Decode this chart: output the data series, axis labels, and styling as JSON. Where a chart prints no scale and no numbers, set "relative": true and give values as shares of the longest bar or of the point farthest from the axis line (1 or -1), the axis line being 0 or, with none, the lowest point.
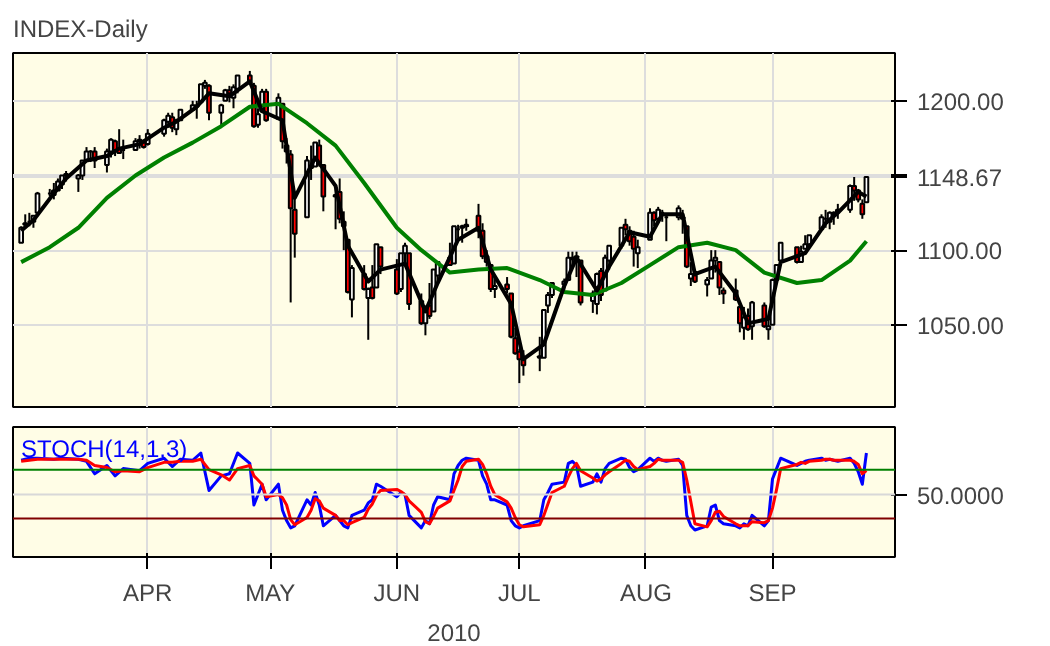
{
  "chart_data": [
    {
      "type": "candlestick",
      "title": "INDEX-Daily",
      "grid": true,
      "tick_labels": "y",
      "x": [
        "2010-03-01",
        "2010-03-02",
        "2010-03-03",
        "2010-03-04",
        "2010-03-05",
        "2010-03-08",
        "2010-03-09",
        "2010-03-10",
        "2010-03-11",
        "2010-03-12",
        "2010-03-15",
        "2010-03-16",
        "2010-03-17",
        "2010-03-18",
        "2010-03-19",
        "2010-03-22",
        "2010-03-23",
        "2010-03-24",
        "2010-03-25",
        "2010-03-26",
        "2010-03-29",
        "2010-03-30",
        "2010-03-31",
        "2010-04-01",
        "2010-04-05",
        "2010-04-06",
        "2010-04-07",
        "2010-04-08",
        "2010-04-09",
        "2010-04-12",
        "2010-04-13",
        "2010-04-14",
        "2010-04-15",
        "2010-04-16",
        "2010-04-19",
        "2010-04-20",
        "2010-04-21",
        "2010-04-22",
        "2010-04-23",
        "2010-04-26",
        "2010-04-27",
        "2010-04-28",
        "2010-04-29",
        "2010-04-30",
        "2010-05-03",
        "2010-05-04",
        "2010-05-05",
        "2010-05-06",
        "2010-05-07",
        "2010-05-10",
        "2010-05-11",
        "2010-05-12",
        "2010-05-13",
        "2010-05-14",
        "2010-05-17",
        "2010-05-18",
        "2010-05-19",
        "2010-05-20",
        "2010-05-21",
        "2010-05-24",
        "2010-05-25",
        "2010-05-26",
        "2010-05-27",
        "2010-05-28",
        "2010-06-01",
        "2010-06-02",
        "2010-06-03",
        "2010-06-04",
        "2010-06-07",
        "2010-06-08",
        "2010-06-09",
        "2010-06-10",
        "2010-06-11",
        "2010-06-14",
        "2010-06-15",
        "2010-06-16",
        "2010-06-17",
        "2010-06-18",
        "2010-06-21",
        "2010-06-22",
        "2010-06-23",
        "2010-06-24",
        "2010-06-25",
        "2010-06-28",
        "2010-06-29",
        "2010-06-30",
        "2010-07-01",
        "2010-07-02",
        "2010-07-06",
        "2010-07-07",
        "2010-07-08",
        "2010-07-09",
        "2010-07-12",
        "2010-07-13",
        "2010-07-14",
        "2010-07-15",
        "2010-07-16",
        "2010-07-19",
        "2010-07-20",
        "2010-07-21",
        "2010-07-22",
        "2010-07-23",
        "2010-07-26",
        "2010-07-27",
        "2010-07-28",
        "2010-07-29",
        "2010-07-30",
        "2010-08-02",
        "2010-08-03",
        "2010-08-04",
        "2010-08-05",
        "2010-08-06",
        "2010-08-09",
        "2010-08-10",
        "2010-08-11",
        "2010-08-12",
        "2010-08-13",
        "2010-08-16",
        "2010-08-17",
        "2010-08-18",
        "2010-08-19",
        "2010-08-20",
        "2010-08-23",
        "2010-08-24",
        "2010-08-25",
        "2010-08-26",
        "2010-08-27",
        "2010-08-30",
        "2010-08-31",
        "2010-09-01",
        "2010-09-02",
        "2010-09-03",
        "2010-09-07",
        "2010-09-08",
        "2010-09-09",
        "2010-09-10",
        "2010-09-13",
        "2010-09-14",
        "2010-09-15",
        "2010-09-16",
        "2010-09-17",
        "2010-09-20",
        "2010-09-21",
        "2010-09-22",
        "2010-09-23",
        "2010-09-24"
      ],
      "ohlc": [
        [
          1105,
          1116,
          1105,
          1115
        ],
        [
          1117,
          1124,
          1116,
          1118
        ],
        [
          1119,
          1125,
          1116,
          1119
        ],
        [
          1119,
          1123,
          1115,
          1123
        ],
        [
          1125,
          1139,
          1125,
          1138
        ],
        [
          1138,
          1141,
          1136,
          1138
        ],
        [
          1137,
          1145,
          1134,
          1140
        ],
        [
          1140,
          1148,
          1140,
          1146
        ],
        [
          1144,
          1150,
          1141,
          1150
        ],
        [
          1151,
          1153,
          1146,
          1150
        ],
        [
          1148,
          1151,
          1139,
          1150
        ],
        [
          1150,
          1160,
          1147,
          1160
        ],
        [
          1160,
          1169,
          1160,
          1166
        ],
        [
          1166,
          1167,
          1159,
          1166
        ],
        [
          1166,
          1169,
          1155,
          1160
        ],
        [
          1157,
          1168,
          1152,
          1166
        ],
        [
          1166,
          1175,
          1162,
          1174
        ],
        [
          1173,
          1174,
          1163,
          1167
        ],
        [
          1168,
          1181,
          1165,
          1165
        ],
        [
          1167,
          1174,
          1161,
          1167
        ],
        [
          1167,
          1175,
          1167,
          1173
        ],
        [
          1173,
          1177,
          1168,
          1174
        ],
        [
          1172,
          1174,
          1168,
          1169
        ],
        [
          1171,
          1181,
          1170,
          1178
        ],
        [
          1178,
          1188,
          1176,
          1187
        ],
        [
          1186,
          1192,
          1182,
          1190
        ],
        [
          1189,
          1192,
          1179,
          1182
        ],
        [
          1181,
          1188,
          1177,
          1187
        ],
        [
          1187,
          1194,
          1187,
          1194
        ],
        [
          1194,
          1200,
          1194,
          1197
        ],
        [
          1196,
          1200,
          1188,
          1197
        ],
        [
          1199,
          1211,
          1199,
          1211
        ],
        [
          1210,
          1214,
          1208,
          1212
        ],
        [
          1210,
          1211,
          1187,
          1192
        ],
        [
          1192,
          1198,
          1183,
          1197
        ],
        [
          1200,
          1208,
          1200,
          1207
        ],
        [
          1207,
          1210,
          1199,
          1205
        ],
        [
          1202,
          1211,
          1195,
          1209
        ],
        [
          1208,
          1217,
          1205,
          1217
        ],
        [
          1217,
          1220,
          1211,
          1212
        ],
        [
          1210,
          1212,
          1182,
          1183
        ],
        [
          1184,
          1195,
          1182,
          1191
        ],
        [
          1193,
          1208,
          1193,
          1206
        ],
        [
          1206,
          1208,
          1186,
          1187
        ],
        [
          1188,
          1205,
          1188,
          1202
        ],
        [
          1198,
          1198,
          1168,
          1173
        ],
        [
          1170,
          1175,
          1158,
          1166
        ],
        [
          1164,
          1167,
          1065,
          1128
        ],
        [
          1127,
          1135,
          1095,
          1111
        ],
        [
          1122,
          1163,
          1122,
          1160
        ],
        [
          1155,
          1170,
          1147,
          1156
        ],
        [
          1156,
          1172,
          1156,
          1172
        ],
        [
          1170,
          1174,
          1156,
          1158
        ],
        [
          1157,
          1157,
          1126,
          1136
        ],
        [
          1137,
          1141,
          1114,
          1136
        ],
        [
          1139,
          1148,
          1118,
          1121
        ],
        [
          1119,
          1126,
          1100,
          1116
        ],
        [
          1107,
          1107,
          1071,
          1072
        ],
        [
          1067,
          1090,
          1055,
          1088
        ],
        [
          1084,
          1090,
          1073,
          1074
        ],
        [
          1068,
          1075,
          1040,
          1074
        ],
        [
          1075,
          1090,
          1067,
          1068
        ],
        [
          1075,
          1104,
          1075,
          1104
        ],
        [
          1102,
          1102,
          1084,
          1089
        ],
        [
          1087,
          1094,
          1070,
          1071
        ],
        [
          1074,
          1098,
          1072,
          1098
        ],
        [
          1098,
          1105,
          1091,
          1103
        ],
        [
          1098,
          1098,
          1060,
          1064
        ],
        [
          1066,
          1071,
          1050,
          1051
        ],
        [
          1051,
          1063,
          1043,
          1062
        ],
        [
          1063,
          1078,
          1054,
          1056
        ],
        [
          1059,
          1087,
          1059,
          1087
        ],
        [
          1083,
          1092,
          1079,
          1092
        ],
        [
          1095,
          1105,
          1090,
          1090
        ],
        [
          1091,
          1116,
          1091,
          1116
        ],
        [
          1114,
          1117,
          1106,
          1114
        ],
        [
          1115,
          1117,
          1105,
          1116
        ],
        [
          1116,
          1121,
          1113,
          1117
        ],
        [
          1123,
          1131,
          1108,
          1113
        ],
        [
          1113,
          1118,
          1094,
          1096
        ],
        [
          1096,
          1100,
          1089,
          1092
        ],
        [
          1090,
          1090,
          1072,
          1074
        ],
        [
          1074,
          1083,
          1068,
          1076
        ],
        [
          1077,
          1082,
          1071,
          1074
        ],
        [
          1071,
          1071,
          1041,
          1042
        ],
        [
          1041,
          1048,
          1030,
          1031
        ],
        [
          1032,
          1034,
          1011,
          1027
        ],
        [
          1028,
          1033,
          1016,
          1023
        ],
        [
          1029,
          1042,
          1019,
          1028
        ],
        [
          1028,
          1060,
          1028,
          1060
        ],
        [
          1063,
          1072,
          1058,
          1070
        ],
        [
          1070,
          1078,
          1068,
          1078
        ],
        [
          1077,
          1081,
          1072,
          1079
        ],
        [
          1080,
          1099,
          1080,
          1095
        ],
        [
          1094,
          1099,
          1088,
          1095
        ],
        [
          1095,
          1099,
          1082,
          1096
        ],
        [
          1093,
          1093,
          1063,
          1065
        ],
        [
          1066,
          1073,
          1058,
          1071
        ],
        [
          1064,
          1085,
          1057,
          1084
        ],
        [
          1086,
          1088,
          1066,
          1070
        ],
        [
          1073,
          1097,
          1073,
          1095
        ],
        [
          1093,
          1103,
          1087,
          1103
        ],
        [
          1103,
          1115,
          1101,
          1115
        ],
        [
          1117,
          1121,
          1110,
          1114
        ],
        [
          1113,
          1116,
          1103,
          1106
        ],
        [
          1109,
          1113,
          1089,
          1101
        ],
        [
          1098,
          1107,
          1088,
          1102
        ],
        [
          1107,
          1128,
          1107,
          1125
        ],
        [
          1125,
          1126,
          1116,
          1120
        ],
        [
          1121,
          1129,
          1120,
          1127
        ],
        [
          1125,
          1127,
          1119,
          1125
        ],
        [
          1122,
          1123,
          1106,
          1122
        ],
        [
          1122,
          1130,
          1120,
          1128
        ],
        [
          1122,
          1127,
          1111,
          1121
        ],
        [
          1116,
          1116,
          1088,
          1089
        ],
        [
          1081,
          1092,
          1076,
          1084
        ],
        [
          1083,
          1087,
          1078,
          1079
        ],
        [
          1077,
          1082,
          1069,
          1080
        ],
        [
          1081,
          1100,
          1081,
          1093
        ],
        [
          1093,
          1100,
          1085,
          1095
        ],
        [
          1092,
          1092,
          1070,
          1075
        ],
        [
          1073,
          1075,
          1064,
          1071
        ],
        [
          1073,
          1081,
          1066,
          1067
        ],
        [
          1062,
          1062,
          1045,
          1051
        ],
        [
          1048,
          1062,
          1040,
          1055
        ],
        [
          1056,
          1061,
          1046,
          1047
        ],
        [
          1049,
          1066,
          1040,
          1065
        ],
        [
          1063,
          1065,
          1048,
          1049
        ],
        [
          1047,
          1056,
          1040,
          1049
        ],
        [
          1050,
          1081,
          1050,
          1080
        ],
        [
          1080,
          1090,
          1079,
          1090
        ],
        [
          1093,
          1105,
          1093,
          1105
        ],
        [
          1102,
          1102,
          1091,
          1092
        ],
        [
          1092,
          1103,
          1092,
          1099
        ],
        [
          1101,
          1110,
          1101,
          1104
        ],
        [
          1104,
          1110,
          1102,
          1110
        ],
        [
          1114,
          1124,
          1114,
          1122
        ],
        [
          1121,
          1127,
          1115,
          1121
        ],
        [
          1119,
          1126,
          1114,
          1125
        ],
        [
          1124,
          1126,
          1117,
          1125
        ],
        [
          1127,
          1131,
          1121,
          1126
        ],
        [
          1127,
          1144,
          1125,
          1143
        ],
        [
          1143,
          1149,
          1133,
          1140
        ],
        [
          1140,
          1141,
          1132,
          1134
        ],
        [
          1131,
          1134,
          1121,
          1124
        ],
        [
          1132,
          1149,
          1132,
          1149
        ]
      ],
      "series": [
        {
          "type": "line",
          "color": "#008000",
          "x": [
            "2010-03-01",
            "2010-03-08",
            "2010-03-15",
            "2010-03-22",
            "2010-03-29",
            "2010-04-05",
            "2010-04-12",
            "2010-04-19",
            "2010-04-26",
            "2010-05-03",
            "2010-05-10",
            "2010-05-17",
            "2010-05-24",
            "2010-06-01",
            "2010-06-07",
            "2010-06-14",
            "2010-06-21",
            "2010-06-28",
            "2010-07-06",
            "2010-07-12",
            "2010-07-19",
            "2010-07-26",
            "2010-08-02",
            "2010-08-09",
            "2010-08-16",
            "2010-08-23",
            "2010-08-30",
            "2010-09-07",
            "2010-09-13",
            "2010-09-20",
            "2010-09-24"
          ],
          "values": [
            1092,
            1102,
            1115,
            1135,
            1150,
            1162,
            1172,
            1183,
            1196,
            1198,
            1185,
            1170,
            1145,
            1115,
            1100,
            1085,
            1087,
            1088,
            1080,
            1072,
            1070,
            1078,
            1090,
            1102,
            1105,
            1100,
            1085,
            1078,
            1080,
            1093,
            1106
          ]
        },
        {
          "type": "line",
          "color": "#000000",
          "x": [
            "2010-03-01",
            "2010-03-04",
            "2010-03-09",
            "2010-03-12",
            "2010-03-17",
            "2010-03-22",
            "2010-03-25",
            "2010-03-30",
            "2010-04-05",
            "2010-04-08",
            "2010-04-13",
            "2010-04-16",
            "2010-04-21",
            "2010-04-26",
            "2010-04-29",
            "2010-05-04",
            "2010-05-07",
            "2010-05-12",
            "2010-05-17",
            "2010-05-20",
            "2010-05-25",
            "2010-05-28",
            "2010-06-03",
            "2010-06-08",
            "2010-06-11",
            "2010-06-16",
            "2010-06-21",
            "2010-06-24",
            "2010-06-29",
            "2010-07-02",
            "2010-07-07",
            "2010-07-12",
            "2010-07-15",
            "2010-07-20",
            "2010-07-23",
            "2010-07-28",
            "2010-08-02",
            "2010-08-05",
            "2010-08-10",
            "2010-08-13",
            "2010-08-18",
            "2010-08-23",
            "2010-08-26",
            "2010-08-31",
            "2010-09-03",
            "2010-09-09",
            "2010-09-14",
            "2010-09-17",
            "2010-09-22",
            "2010-09-24"
          ],
          "values": [
            1113,
            1120,
            1138,
            1148,
            1160,
            1163,
            1168,
            1171,
            1182,
            1186,
            1196,
            1205,
            1203,
            1213,
            1193,
            1187,
            1135,
            1162,
            1143,
            1103,
            1079,
            1087,
            1091,
            1059,
            1078,
            1107,
            1115,
            1087,
            1064,
            1027,
            1037,
            1076,
            1095,
            1073,
            1089,
            1112,
            1109,
            1124,
            1124,
            1084,
            1089,
            1071,
            1051,
            1054,
            1092,
            1098,
            1118,
            1125,
            1139,
            1136
          ]
        }
      ],
      "xlim": [
        "2010-02-27",
        "2010-10-01"
      ],
      "xticks": [
        {
          "value": "2010-04-01",
          "label": null
        },
        {
          "value": "2010-05-01",
          "label": null
        },
        {
          "value": "2010-06-01",
          "label": null
        },
        {
          "value": "2010-07-01",
          "label": null
        },
        {
          "value": "2010-08-01",
          "label": null
        },
        {
          "value": "2010-09-01",
          "label": null
        }
      ],
      "ylim": [
        995,
        1232
      ],
      "yticks": [
        {
          "value": 1050,
          "label": "1050.00"
        },
        {
          "value": 1100,
          "label": "1100.00"
        },
        {
          "value": 1148.67,
          "label": "1148.67"
        },
        {
          "value": 1150,
          "label": null
        },
        {
          "value": 1200,
          "label": "1200.00"
        }
      ]
    },
    {
      "type": "line",
      "relative": true,
      "grid": "x",
      "tick_labels": "x",
      "xlabel": "2010",
      "annotations": [
        "STOCH(14,1,3)",
        "50.0000"
      ],
      "x": [
        "2010-03-01",
        "2010-03-03",
        "2010-03-05",
        "2010-03-09",
        "2010-03-11",
        "2010-03-15",
        "2010-03-17",
        "2010-03-19",
        "2010-03-22",
        "2010-03-24",
        "2010-03-26",
        "2010-03-30",
        "2010-04-01",
        "2010-04-05",
        "2010-04-07",
        "2010-04-09",
        "2010-04-12",
        "2010-04-14",
        "2010-04-16",
        "2010-04-19",
        "2010-04-21",
        "2010-04-23",
        "2010-04-26",
        "2010-04-27",
        "2010-04-29",
        "2010-04-30",
        "2010-05-03",
        "2010-05-04",
        "2010-05-05",
        "2010-05-06",
        "2010-05-07",
        "2010-05-10",
        "2010-05-11",
        "2010-05-12",
        "2010-05-13",
        "2010-05-14",
        "2010-05-17",
        "2010-05-18",
        "2010-05-19",
        "2010-05-20",
        "2010-05-21",
        "2010-05-24",
        "2010-05-25",
        "2010-05-26",
        "2010-05-27",
        "2010-05-28",
        "2010-06-01",
        "2010-06-02",
        "2010-06-03",
        "2010-06-04",
        "2010-06-07",
        "2010-06-08",
        "2010-06-09",
        "2010-06-10",
        "2010-06-11",
        "2010-06-14",
        "2010-06-15",
        "2010-06-16",
        "2010-06-17",
        "2010-06-18",
        "2010-06-21",
        "2010-06-22",
        "2010-06-23",
        "2010-06-24",
        "2010-06-25",
        "2010-06-28",
        "2010-06-29",
        "2010-06-30",
        "2010-07-01",
        "2010-07-02",
        "2010-07-06",
        "2010-07-07",
        "2010-07-08",
        "2010-07-09",
        "2010-07-12",
        "2010-07-13",
        "2010-07-14",
        "2010-07-15",
        "2010-07-16",
        "2010-07-19",
        "2010-07-20",
        "2010-07-21",
        "2010-07-22",
        "2010-07-23",
        "2010-07-26",
        "2010-07-27",
        "2010-07-28",
        "2010-07-29",
        "2010-07-30",
        "2010-08-02",
        "2010-08-03",
        "2010-08-04",
        "2010-08-05",
        "2010-08-06",
        "2010-08-09",
        "2010-08-10",
        "2010-08-11",
        "2010-08-12",
        "2010-08-13",
        "2010-08-16",
        "2010-08-17",
        "2010-08-18",
        "2010-08-19",
        "2010-08-20",
        "2010-08-23",
        "2010-08-24",
        "2010-08-25",
        "2010-08-26",
        "2010-08-27",
        "2010-08-30",
        "2010-08-31",
        "2010-09-01",
        "2010-09-02",
        "2010-09-03",
        "2010-09-07",
        "2010-09-08",
        "2010-09-09",
        "2010-09-10",
        "2010-09-13",
        "2010-09-14",
        "2010-09-15",
        "2010-09-16",
        "2010-09-17",
        "2010-09-20",
        "2010-09-21",
        "2010-09-22",
        "2010-09-23",
        "2010-09-24"
      ],
      "series": [
        {
          "color": "#0000ff",
          "values": [
            0.93,
            0.95,
            0.95,
            0.94,
            0.95,
            0.94,
            0.92,
            0.8,
            0.88,
            0.78,
            0.85,
            0.83,
            0.9,
            0.95,
            0.87,
            0.94,
            0.93,
            1.0,
            0.64,
            0.78,
            0.8,
            1.0,
            0.9,
            0.5,
            0.7,
            0.55,
            0.7,
            0.45,
            0.35,
            0.28,
            0.3,
            0.55,
            0.5,
            0.62,
            0.5,
            0.3,
            0.4,
            0.35,
            0.3,
            0.28,
            0.4,
            0.45,
            0.52,
            0.55,
            0.7,
            0.68,
            0.58,
            0.62,
            0.6,
            0.4,
            0.28,
            0.35,
            0.32,
            0.5,
            0.58,
            0.55,
            0.8,
            0.88,
            0.93,
            0.95,
            0.93,
            0.78,
            0.7,
            0.55,
            0.55,
            0.5,
            0.35,
            0.3,
            0.28,
            0.3,
            0.35,
            0.55,
            0.62,
            0.7,
            0.72,
            0.9,
            0.92,
            0.88,
            0.68,
            0.72,
            0.8,
            0.72,
            0.85,
            0.9,
            0.95,
            0.94,
            0.86,
            0.82,
            0.84,
            0.95,
            0.92,
            0.95,
            0.93,
            0.92,
            0.94,
            0.88,
            0.4,
            0.3,
            0.26,
            0.3,
            0.48,
            0.5,
            0.35,
            0.32,
            0.3,
            0.28,
            0.32,
            0.3,
            0.4,
            0.3,
            0.35,
            0.75,
            0.85,
            0.95,
            0.88,
            0.9,
            0.92,
            0.93,
            0.95,
            0.93,
            0.94,
            0.93,
            0.92,
            0.95,
            0.9,
            0.82,
            0.7,
            1.0
          ]
        },
        {
          "color": "#ff0000",
          "values": [
            0.92,
            0.93,
            0.94,
            0.94,
            0.94,
            0.94,
            0.93,
            0.88,
            0.86,
            0.82,
            0.83,
            0.82,
            0.86,
            0.91,
            0.91,
            0.92,
            0.92,
            0.94,
            0.84,
            0.79,
            0.74,
            0.85,
            0.88,
            0.78,
            0.7,
            0.58,
            0.6,
            0.57,
            0.5,
            0.36,
            0.31,
            0.38,
            0.45,
            0.56,
            0.54,
            0.47,
            0.4,
            0.35,
            0.35,
            0.31,
            0.33,
            0.38,
            0.46,
            0.51,
            0.59,
            0.64,
            0.65,
            0.63,
            0.6,
            0.54,
            0.43,
            0.34,
            0.32,
            0.39,
            0.47,
            0.54,
            0.64,
            0.74,
            0.87,
            0.92,
            0.94,
            0.89,
            0.8,
            0.68,
            0.6,
            0.53,
            0.47,
            0.38,
            0.31,
            0.29,
            0.31,
            0.4,
            0.51,
            0.62,
            0.68,
            0.77,
            0.85,
            0.9,
            0.83,
            0.76,
            0.73,
            0.75,
            0.79,
            0.82,
            0.9,
            0.93,
            0.92,
            0.87,
            0.84,
            0.87,
            0.9,
            0.94,
            0.93,
            0.93,
            0.93,
            0.91,
            0.74,
            0.53,
            0.32,
            0.29,
            0.35,
            0.43,
            0.44,
            0.39,
            0.32,
            0.3,
            0.3,
            0.3,
            0.34,
            0.33,
            0.35,
            0.47,
            0.65,
            0.85,
            0.89,
            0.91,
            0.9,
            0.92,
            0.93,
            0.94,
            0.94,
            0.93,
            0.93,
            0.93,
            0.92,
            0.89,
            0.8,
            0.83
          ]
        }
      ],
      "ref_lines": [
        {
          "axis": "y",
          "value": 0.84,
          "color": "#008000"
        },
        {
          "axis": "y",
          "value": 0.6,
          "color": "#d8d8d8"
        },
        {
          "axis": "y",
          "value": 0.37,
          "color": "#800000"
        }
      ],
      "xlim": [
        "2010-02-27",
        "2010-10-01"
      ],
      "xticks": [
        {
          "value": "2010-04-01",
          "label": "APR"
        },
        {
          "value": "2010-05-01",
          "label": "MAY"
        },
        {
          "value": "2010-06-01",
          "label": "JUN"
        },
        {
          "value": "2010-07-01",
          "label": "JUL"
        },
        {
          "value": "2010-08-01",
          "label": "AUG"
        },
        {
          "value": "2010-09-01",
          "label": "SEP"
        }
      ]
    }
  ]
}
